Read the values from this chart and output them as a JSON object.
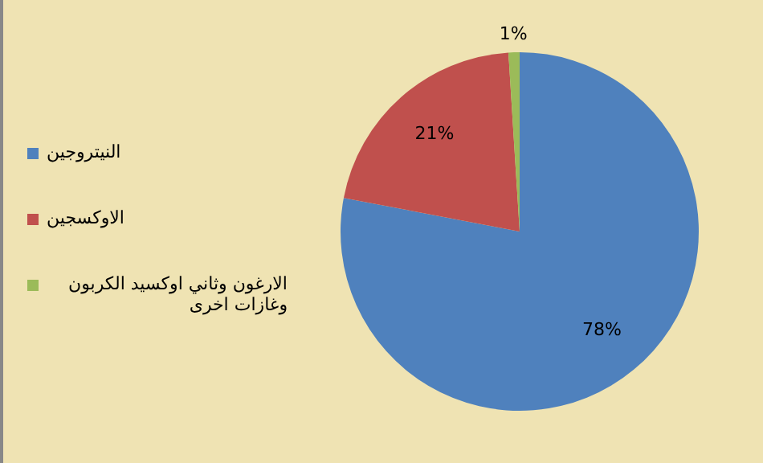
{
  "chart_data": {
    "type": "pie",
    "categories": [
      "النيتروجين",
      "الاوكسجين",
      "الارغون وثاني اوكسيد الكربون وغازات اخرى"
    ],
    "values": [
      78,
      21,
      1
    ],
    "colors": [
      "#4f81bd",
      "#c0504d",
      "#9bbb59"
    ],
    "value_labels": [
      "78%",
      "21%",
      "1%"
    ],
    "legend": "left"
  }
}
